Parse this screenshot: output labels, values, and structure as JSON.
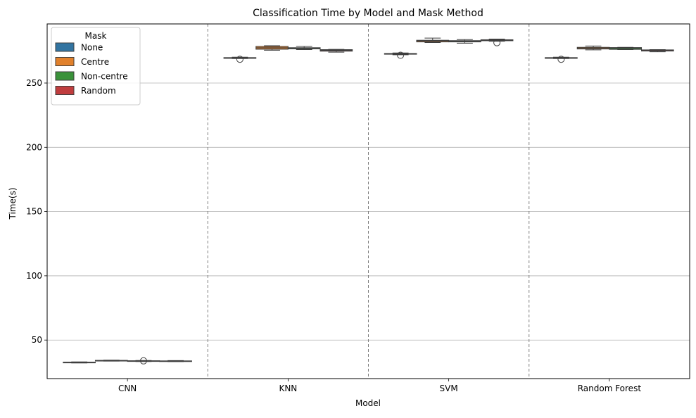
{
  "chart_data": {
    "type": "box",
    "title": "Classification Time by Model and Mask Method",
    "xlabel": "Model",
    "ylabel": "Time(s)",
    "categories": [
      "CNN",
      "KNN",
      "SVM",
      "Random Forest"
    ],
    "ylim": [
      20,
      296
    ],
    "yticks": [
      50,
      100,
      150,
      200,
      250
    ],
    "grid": "horizontal",
    "separators": "dashed vertical lines between model groups",
    "legend": {
      "title": "Mask",
      "position": "top-left"
    },
    "series": [
      {
        "name": "None",
        "color": "#3274a1",
        "boxes": [
          {
            "category": "CNN",
            "whisker_low": 32.2,
            "q1": 32.4,
            "median": 32.6,
            "q3": 32.8,
            "whisker_high": 33.0,
            "outliers": []
          },
          {
            "category": "KNN",
            "whisker_low": 269.0,
            "q1": 269.2,
            "median": 269.5,
            "q3": 269.8,
            "whisker_high": 270.1,
            "outliers": [
              268.5
            ]
          },
          {
            "category": "SVM",
            "whisker_low": 272.0,
            "q1": 272.4,
            "median": 272.7,
            "q3": 273.0,
            "whisker_high": 273.4,
            "outliers": [
              271.6
            ]
          },
          {
            "category": "Random Forest",
            "whisker_low": 269.0,
            "q1": 269.2,
            "median": 269.5,
            "q3": 269.8,
            "whisker_high": 270.1,
            "outliers": [
              268.5
            ]
          }
        ]
      },
      {
        "name": "Centre",
        "color": "#e1812c",
        "boxes": [
          {
            "category": "CNN",
            "whisker_low": 33.6,
            "q1": 33.8,
            "median": 34.0,
            "q3": 34.2,
            "whisker_high": 34.4,
            "outliers": []
          },
          {
            "category": "KNN",
            "whisker_low": 275.5,
            "q1": 276.3,
            "median": 277.4,
            "q3": 278.5,
            "whisker_high": 279.0,
            "outliers": []
          },
          {
            "category": "SVM",
            "whisker_low": 281.5,
            "q1": 282.0,
            "median": 282.8,
            "q3": 283.3,
            "whisker_high": 285.0,
            "outliers": []
          },
          {
            "category": "Random Forest",
            "whisker_low": 275.8,
            "q1": 276.5,
            "median": 277.2,
            "q3": 277.8,
            "whisker_high": 278.8,
            "outliers": []
          }
        ]
      },
      {
        "name": "Non-centre",
        "color": "#3a923a",
        "boxes": [
          {
            "category": "CNN",
            "whisker_low": 33.3,
            "q1": 33.5,
            "median": 33.7,
            "q3": 33.9,
            "whisker_high": 34.1,
            "outliers": []
          },
          {
            "category": "KNN",
            "whisker_low": 276.0,
            "q1": 276.6,
            "median": 277.0,
            "q3": 277.5,
            "whisker_high": 278.5,
            "outliers": []
          },
          {
            "category": "SVM",
            "whisker_low": 281.0,
            "q1": 282.0,
            "median": 282.5,
            "q3": 283.0,
            "whisker_high": 283.8,
            "outliers": []
          },
          {
            "category": "Random Forest",
            "whisker_low": 276.0,
            "q1": 276.2,
            "median": 277.0,
            "q3": 277.6,
            "whisker_high": 277.8,
            "outliers": []
          }
        ]
      },
      {
        "name": "Random",
        "color": "#c03d3e",
        "boxes": [
          {
            "category": "CNN",
            "whisker_low": 33.2,
            "q1": 33.4,
            "median": 33.6,
            "q3": 33.8,
            "whisker_high": 34.0,
            "outliers": []
          },
          {
            "category": "KNN",
            "whisker_low": 274.0,
            "q1": 274.8,
            "median": 275.4,
            "q3": 276.0,
            "whisker_high": 276.2,
            "outliers": []
          },
          {
            "category": "SVM",
            "whisker_low": 282.5,
            "q1": 282.9,
            "median": 283.3,
            "q3": 283.7,
            "whisker_high": 284.2,
            "outliers": [
              281.4
            ]
          },
          {
            "category": "Random Forest",
            "whisker_low": 274.3,
            "q1": 274.9,
            "median": 275.3,
            "q3": 275.8,
            "whisker_high": 276.0,
            "outliers": []
          }
        ]
      }
    ],
    "cnn_outlier": {
      "category": "CNN",
      "value": 33.8
    }
  }
}
